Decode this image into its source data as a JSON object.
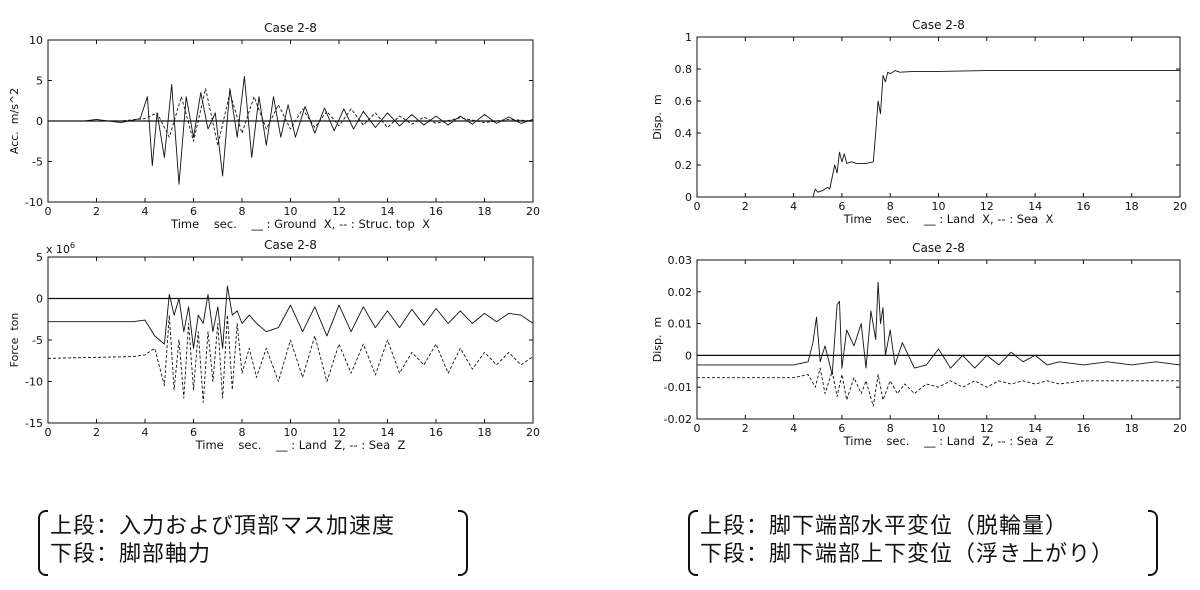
{
  "chart_data": [
    {
      "type": "line",
      "title": "Case 2-8",
      "xlabel": "Time    sec.    __ : Ground  X, -- : Struc. top  X",
      "ylabel": "Acc.  m/s^2",
      "multiplier": "",
      "xlim": [
        0,
        20
      ],
      "ylim": [
        -10,
        10
      ],
      "xticks": [
        "0",
        "2",
        "4",
        "6",
        "8",
        "10",
        "12",
        "14",
        "16",
        "18",
        "20"
      ],
      "yticks": [
        "10",
        "5",
        "0",
        "-5",
        "-10"
      ],
      "baseline": 0,
      "series": [
        {
          "style": "solid",
          "x": [
            0,
            1.5,
            2,
            3,
            3.8,
            4.1,
            4.3,
            4.5,
            4.8,
            5.1,
            5.4,
            5.7,
            6.0,
            6.3,
            6.6,
            6.9,
            7.2,
            7.5,
            7.8,
            8.1,
            8.4,
            8.7,
            9.0,
            9.3,
            9.6,
            9.9,
            10.2,
            10.6,
            11.0,
            11.4,
            11.8,
            12.2,
            12.6,
            13.0,
            13.5,
            14.0,
            14.5,
            15.0,
            15.5,
            16.0,
            16.5,
            17.0,
            17.5,
            18.0,
            18.5,
            19.0,
            19.5,
            20
          ],
          "values": [
            0,
            0,
            0.2,
            -0.2,
            0.3,
            3,
            -5.5,
            1,
            -4.5,
            4.5,
            -7.8,
            3,
            -2,
            3.5,
            -1,
            1,
            -6.8,
            4,
            -2,
            5.5,
            -4.5,
            3,
            -3,
            3,
            -2,
            2,
            -2,
            1.8,
            -1.5,
            1.6,
            -1.2,
            1.5,
            -1,
            1.2,
            -0.8,
            1,
            -0.6,
            0.8,
            -0.5,
            0.6,
            -0.5,
            0.6,
            -0.4,
            0.8,
            -0.3,
            0.5,
            -0.3,
            0.2
          ]
        },
        {
          "style": "dashed",
          "x": [
            0,
            3,
            4,
            4.5,
            5,
            5.5,
            6,
            6.5,
            7,
            7.5,
            8,
            8.5,
            9,
            9.5,
            10,
            10.5,
            11,
            11.5,
            12,
            12.5,
            13,
            13.5,
            14,
            14.5,
            15,
            15.5,
            16,
            17,
            18,
            19,
            20
          ],
          "values": [
            0,
            0,
            0.3,
            1,
            -2,
            3,
            -2.5,
            4,
            -3,
            3.5,
            -1.5,
            3,
            -1,
            2,
            -1,
            1.5,
            -0.8,
            1.2,
            -0.6,
            1.5,
            -0.5,
            1,
            -0.8,
            0.6,
            -0.4,
            0.5,
            -0.3,
            0.4,
            -0.2,
            0.2,
            0
          ]
        }
      ]
    },
    {
      "type": "line",
      "title": "Case 2-8",
      "xlabel": "Time    sec.    __ : Land  X, -- : Sea  X",
      "ylabel": "Disp.  m",
      "multiplier": "",
      "xlim": [
        0,
        20
      ],
      "ylim": [
        0,
        1
      ],
      "xticks": [
        "0",
        "2",
        "4",
        "6",
        "8",
        "10",
        "12",
        "14",
        "16",
        "18",
        "20"
      ],
      "yticks": [
        "1",
        "0.8",
        "0.6",
        "0.4",
        "0.2",
        "0"
      ],
      "baseline": null,
      "series": [
        {
          "style": "solid",
          "x": [
            0,
            4.8,
            4.9,
            5.0,
            5.2,
            5.4,
            5.5,
            5.7,
            5.8,
            5.9,
            6.0,
            6.1,
            6.2,
            6.4,
            6.6,
            6.8,
            7.0,
            7.3,
            7.4,
            7.5,
            7.6,
            7.7,
            7.8,
            7.9,
            8.0,
            8.2,
            8.4,
            9,
            10,
            12,
            14,
            16,
            18,
            20
          ],
          "values": [
            0,
            0,
            0.05,
            0.03,
            0.04,
            0.06,
            0.05,
            0.2,
            0.15,
            0.28,
            0.22,
            0.27,
            0.21,
            0.22,
            0.21,
            0.21,
            0.21,
            0.22,
            0.4,
            0.6,
            0.52,
            0.76,
            0.72,
            0.78,
            0.77,
            0.79,
            0.78,
            0.785,
            0.785,
            0.79,
            0.79,
            0.79,
            0.79,
            0.79
          ]
        }
      ]
    },
    {
      "type": "line",
      "title": "Case 2-8",
      "xlabel": "Time    sec.    __ : Land  Z, -- : Sea  Z",
      "ylabel": "Force  ton",
      "multiplier": "x 10",
      "multiplier_exp": "6",
      "xlim": [
        0,
        20
      ],
      "ylim": [
        -15,
        5
      ],
      "xticks": [
        "0",
        "2",
        "4",
        "6",
        "8",
        "10",
        "12",
        "14",
        "16",
        "18",
        "20"
      ],
      "yticks": [
        "5",
        "0",
        "-5",
        "-10",
        "-15"
      ],
      "baseline": 0,
      "series": [
        {
          "style": "solid",
          "x": [
            0,
            3.5,
            4,
            4.4,
            4.8,
            5.0,
            5.2,
            5.4,
            5.6,
            5.8,
            6.0,
            6.2,
            6.4,
            6.6,
            6.8,
            7.0,
            7.2,
            7.4,
            7.6,
            7.8,
            8.0,
            8.3,
            8.6,
            9.0,
            9.5,
            10,
            10.5,
            11,
            11.5,
            12,
            12.5,
            13,
            13.5,
            14,
            14.5,
            15,
            15.5,
            16,
            16.5,
            17,
            17.5,
            18,
            18.5,
            19,
            19.5,
            20
          ],
          "values": [
            -2.8,
            -2.8,
            -2.6,
            -4.5,
            -5.5,
            0.5,
            -2,
            0,
            -4,
            -1,
            -6,
            -2,
            -3,
            0.5,
            -4,
            -1,
            -6,
            1.5,
            -2,
            -1.5,
            -3,
            -2,
            -3,
            -4,
            -3.5,
            -0.8,
            -4,
            -1,
            -4.5,
            -0.8,
            -4,
            -1,
            -3.5,
            -1.5,
            -3.5,
            -1.3,
            -3.2,
            -1.2,
            -3,
            -1.5,
            -3,
            -1.8,
            -2.8,
            -1.8,
            -2,
            -3
          ]
        },
        {
          "style": "dashed",
          "x": [
            0,
            3.5,
            4,
            4.4,
            4.8,
            5.0,
            5.2,
            5.4,
            5.6,
            5.8,
            6.0,
            6.2,
            6.4,
            6.6,
            6.8,
            7.0,
            7.2,
            7.4,
            7.6,
            7.8,
            8.0,
            8.3,
            8.6,
            9.0,
            9.5,
            10,
            10.5,
            11,
            11.5,
            12,
            12.5,
            13,
            13.5,
            14,
            14.5,
            15,
            15.5,
            16,
            16.5,
            17,
            17.5,
            18,
            18.5,
            19,
            19.5,
            20
          ],
          "values": [
            -7.2,
            -7,
            -6.8,
            -6,
            -10.5,
            -2,
            -11,
            -5,
            -12,
            -3,
            -11,
            -4,
            -12.5,
            -4,
            -10,
            -3,
            -12,
            -2,
            -11,
            -3,
            -9,
            -6,
            -9.5,
            -6,
            -10,
            -5,
            -9.5,
            -4.5,
            -10,
            -5.5,
            -9,
            -5.5,
            -9.2,
            -5,
            -9,
            -6.5,
            -8,
            -5.5,
            -9,
            -6,
            -8.5,
            -6.5,
            -8,
            -6.5,
            -8,
            -7
          ]
        }
      ]
    },
    {
      "type": "line",
      "title": "Case 2-8",
      "xlabel": "Time    sec.    __ : Land  Z, -- : Sea  Z",
      "ylabel": "Disp.  m",
      "multiplier": "",
      "xlim": [
        0,
        20
      ],
      "ylim": [
        -0.02,
        0.03
      ],
      "xticks": [
        "0",
        "2",
        "4",
        "6",
        "8",
        "10",
        "12",
        "14",
        "16",
        "18",
        "20"
      ],
      "yticks": [
        "0.03",
        "0.02",
        "0.01",
        "0",
        "-0.01",
        "-0.02"
      ],
      "baseline": 0,
      "series": [
        {
          "style": "solid",
          "x": [
            0,
            4,
            4.6,
            4.8,
            4.95,
            5.1,
            5.3,
            5.6,
            5.8,
            5.9,
            6.0,
            6.2,
            6.5,
            6.8,
            7.0,
            7.2,
            7.4,
            7.5,
            7.6,
            7.7,
            7.8,
            8.0,
            8.2,
            8.5,
            9.0,
            9.5,
            10,
            10.5,
            11,
            11.5,
            12,
            12.5,
            13,
            13.5,
            14,
            14.5,
            15,
            16,
            17,
            18,
            19,
            20
          ],
          "values": [
            -0.003,
            -0.003,
            -0.002,
            0.004,
            0.012,
            -0.002,
            0.003,
            -0.006,
            0.016,
            0.017,
            -0.004,
            0.008,
            0.003,
            0.01,
            -0.004,
            0.014,
            0.005,
            0.023,
            0.01,
            0.015,
            0,
            0.008,
            -0.003,
            0.004,
            -0.004,
            -0.003,
            0.002,
            -0.004,
            0,
            -0.004,
            0,
            -0.003,
            0.001,
            -0.002,
            0,
            -0.003,
            -0.002,
            -0.003,
            -0.002,
            -0.003,
            -0.002,
            -0.003
          ]
        },
        {
          "style": "dashed",
          "x": [
            0,
            4,
            4.6,
            4.9,
            5.1,
            5.3,
            5.6,
            5.8,
            6.0,
            6.2,
            6.5,
            6.8,
            7.0,
            7.3,
            7.5,
            7.7,
            8.0,
            8.3,
            8.6,
            9,
            9.5,
            10,
            10.5,
            11,
            11.5,
            12,
            12.5,
            13,
            13.5,
            14,
            14.5,
            15,
            16,
            17,
            18,
            19,
            20
          ],
          "values": [
            -0.007,
            -0.007,
            -0.006,
            -0.01,
            -0.004,
            -0.012,
            -0.005,
            -0.013,
            -0.006,
            -0.014,
            -0.007,
            -0.012,
            -0.008,
            -0.016,
            -0.006,
            -0.014,
            -0.008,
            -0.012,
            -0.009,
            -0.012,
            -0.009,
            -0.01,
            -0.008,
            -0.01,
            -0.008,
            -0.01,
            -0.008,
            -0.009,
            -0.008,
            -0.009,
            -0.008,
            -0.009,
            -0.008,
            -0.008,
            -0.008,
            -0.008,
            -0.008
          ]
        }
      ]
    }
  ],
  "captions": {
    "left": {
      "line1": "上段：入力および頂部マス加速度",
      "line2": "下段：脚部軸力"
    },
    "right": {
      "line1": "上段：脚下端部水平変位（脱輪量）",
      "line2": "下段：脚下端部上下変位（浮き上がり）"
    }
  }
}
